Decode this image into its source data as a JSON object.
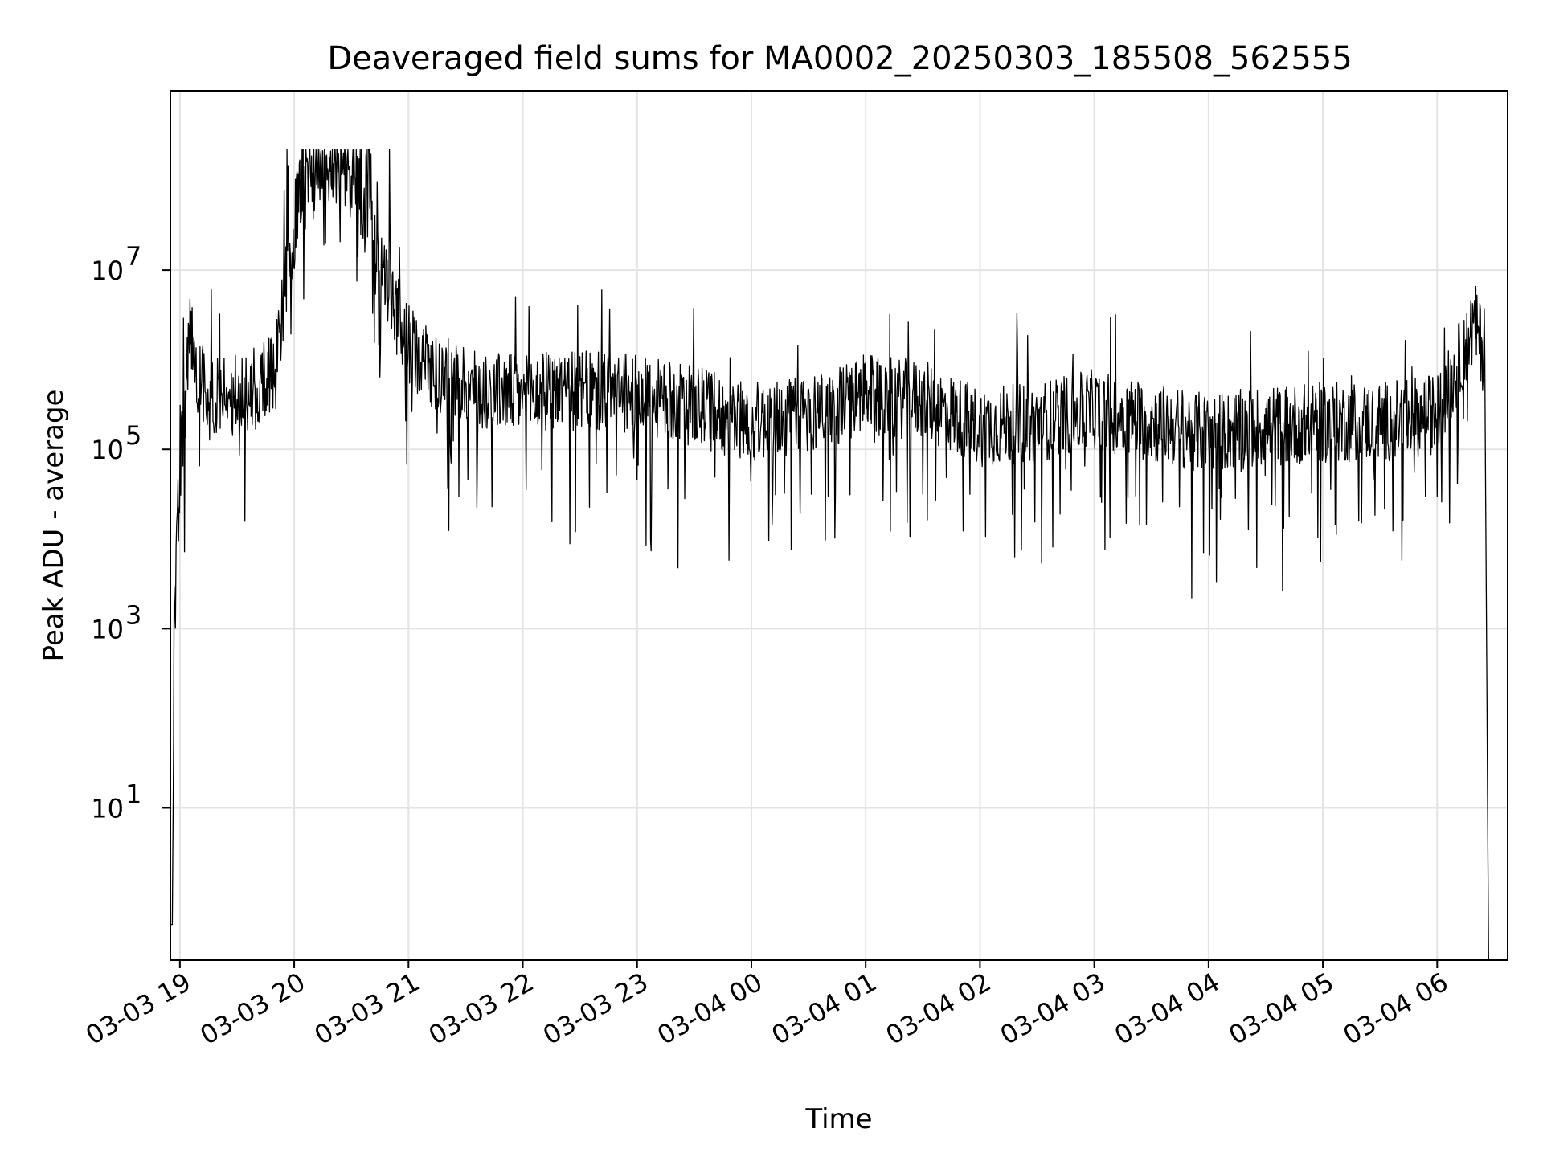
{
  "chart_data": {
    "type": "line",
    "title": "Deaveraged field sums for MA0002_20250303_185508_562555",
    "xlabel": "Time",
    "ylabel": "Peak ADU - average",
    "y_scale": "log",
    "ylim": [
      0.2,
      1000000000
    ],
    "xlim": [
      "2025-03-03 18:55",
      "2025-03-04 06:37"
    ],
    "grid": true,
    "line_color": "#000000",
    "x_ticks": [
      {
        "t": "2025-03-03 19:00",
        "label": "03-03 19"
      },
      {
        "t": "2025-03-03 20:00",
        "label": "03-03 20"
      },
      {
        "t": "2025-03-03 21:00",
        "label": "03-03 21"
      },
      {
        "t": "2025-03-03 22:00",
        "label": "03-03 22"
      },
      {
        "t": "2025-03-03 23:00",
        "label": "03-03 23"
      },
      {
        "t": "2025-03-04 00:00",
        "label": "03-04 00"
      },
      {
        "t": "2025-03-04 01:00",
        "label": "03-04 01"
      },
      {
        "t": "2025-03-04 02:00",
        "label": "03-04 02"
      },
      {
        "t": "2025-03-04 03:00",
        "label": "03-04 03"
      },
      {
        "t": "2025-03-04 04:00",
        "label": "03-04 04"
      },
      {
        "t": "2025-03-04 05:00",
        "label": "03-04 05"
      },
      {
        "t": "2025-03-04 06:00",
        "label": "03-04 06"
      }
    ],
    "y_ticks": [
      {
        "value": 10,
        "base": "10",
        "exp": "1"
      },
      {
        "value": 1000,
        "base": "10",
        "exp": "3"
      },
      {
        "value": 100000,
        "base": "10",
        "exp": "5"
      },
      {
        "value": 10000000,
        "base": "10",
        "exp": "7"
      }
    ],
    "series": [
      {
        "x": [
          "2025-03-03 18:55",
          "2025-03-03 18:56",
          "2025-03-03 18:57",
          "2025-03-03 18:58",
          "2025-03-03 18:59",
          "2025-03-03 19:01",
          "2025-03-03 19:03",
          "2025-03-03 19:05",
          "2025-03-03 19:07",
          "2025-03-03 19:10",
          "2025-03-03 19:15",
          "2025-03-03 19:20",
          "2025-03-03 19:30",
          "2025-03-03 19:40",
          "2025-03-03 19:50",
          "2025-03-03 19:58",
          "2025-03-03 20:05",
          "2025-03-03 20:15",
          "2025-03-03 20:25",
          "2025-03-03 20:32",
          "2025-03-03 20:40",
          "2025-03-03 20:50",
          "2025-03-03 21:00",
          "2025-03-03 21:15",
          "2025-03-03 21:30",
          "2025-03-03 21:45",
          "2025-03-03 22:00",
          "2025-03-03 22:15",
          "2025-03-03 22:30",
          "2025-03-03 23:00",
          "2025-03-03 23:30",
          "2025-03-04 00:00",
          "2025-03-04 00:30",
          "2025-03-04 01:00",
          "2025-03-04 01:30",
          "2025-03-04 02:00",
          "2025-03-04 02:30",
          "2025-03-04 03:00",
          "2025-03-04 03:30",
          "2025-03-04 04:00",
          "2025-03-04 04:30",
          "2025-03-04 05:00",
          "2025-03-04 05:30",
          "2025-03-04 06:00",
          "2025-03-04 06:08",
          "2025-03-04 06:15",
          "2025-03-04 06:20",
          "2025-03-04 06:23",
          "2025-03-04 06:25",
          "2025-03-04 06:27"
        ],
        "y": [
          0.5,
          0.5,
          500,
          3000,
          20000,
          100000,
          300000,
          2500000,
          1200000,
          700000,
          400000,
          400000,
          400000,
          500000,
          800000,
          20000000,
          120000000,
          150000000,
          160000000,
          80000000,
          30000000,
          5000000,
          1500000,
          700000,
          500000,
          450000,
          400000,
          450000,
          450000,
          400000,
          300000,
          200000,
          250000,
          400000,
          350000,
          180000,
          200000,
          280000,
          200000,
          150000,
          180000,
          200000,
          200000,
          250000,
          600000,
          1500000,
          2500000,
          1500000,
          1000000,
          0.2
        ]
      }
    ]
  }
}
